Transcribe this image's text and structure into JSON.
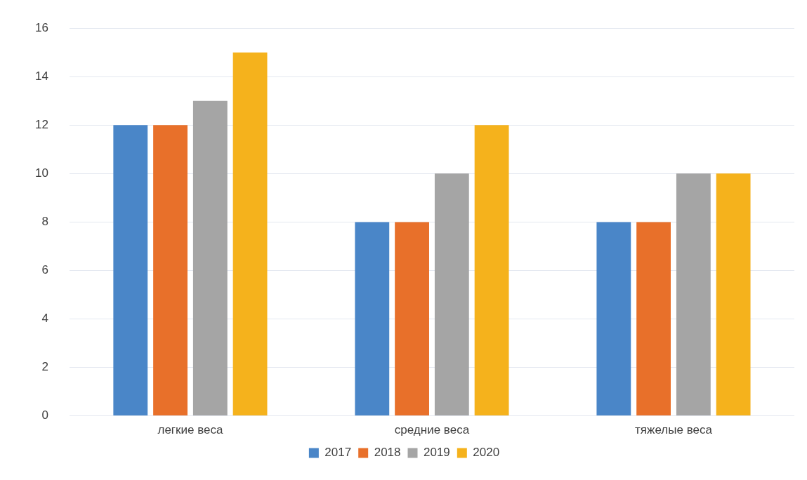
{
  "chart_data": {
    "type": "bar",
    "categories": [
      "легкие веса",
      "средние веса",
      "тяжелые веса"
    ],
    "series": [
      {
        "name": "2017",
        "color": "#4a86c8",
        "values": [
          12,
          8,
          8
        ]
      },
      {
        "name": "2018",
        "color": "#e8702a",
        "values": [
          12,
          8,
          8
        ]
      },
      {
        "name": "2019",
        "color": "#a5a5a5",
        "values": [
          13,
          10,
          10
        ]
      },
      {
        "name": "2020",
        "color": "#f5b21c",
        "values": [
          15,
          12,
          10
        ]
      }
    ],
    "ylim": [
      0,
      16
    ],
    "yticks": [
      0,
      2,
      4,
      6,
      8,
      10,
      12,
      14,
      16
    ],
    "grid": "y",
    "legend": "bottom"
  }
}
